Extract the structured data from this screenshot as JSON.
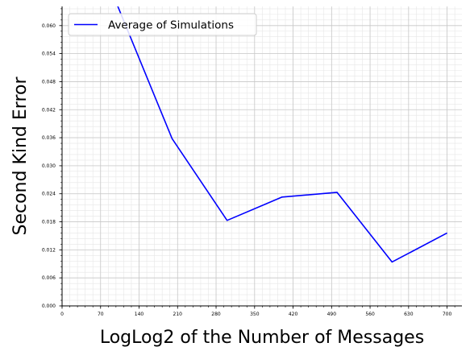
{
  "chart_data": {
    "type": "line",
    "title": "",
    "xlabel": "LogLog2 of the Number of Messages",
    "ylabel": "Second Kind Error",
    "xlim": [
      0,
      727
    ],
    "ylim": [
      0,
      0.0641
    ],
    "x_ticks": [
      0,
      70,
      140,
      210,
      280,
      350,
      420,
      490,
      560,
      630,
      700
    ],
    "x_tick_labels": [
      "0",
      "70",
      "140",
      "210",
      "280",
      "350",
      "420",
      "490",
      "560",
      "630",
      "700"
    ],
    "y_ticks": [
      0,
      0.006,
      0.012,
      0.018,
      0.024,
      0.03,
      0.036,
      0.042,
      0.048,
      0.054,
      0.06
    ],
    "y_tick_labels": [
      "0.000",
      "0.006",
      "0.012",
      "0.018",
      "0.024",
      "0.030",
      "0.036",
      "0.042",
      "0.048",
      "0.054",
      "0.060"
    ],
    "grid": true,
    "minor_grid": true,
    "legend_position": "top-left",
    "series": [
      {
        "name": "Average of Simulations",
        "color": "#0000ff",
        "x": [
          100,
          200,
          300,
          400,
          500,
          600,
          700
        ],
        "y": [
          0.0645,
          0.0358,
          0.0183,
          0.0233,
          0.0243,
          0.0094,
          0.0156
        ]
      }
    ]
  }
}
